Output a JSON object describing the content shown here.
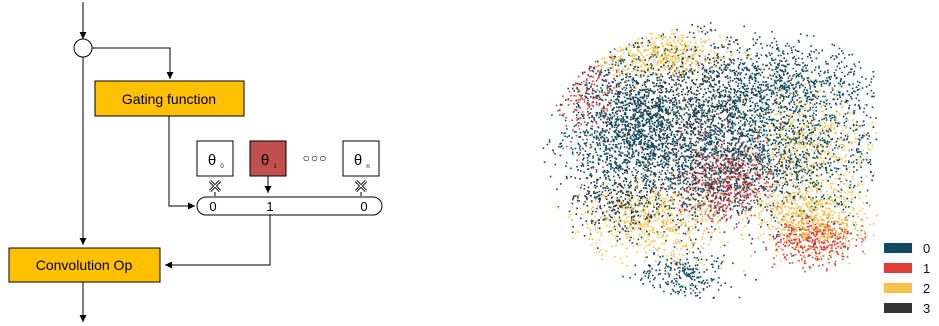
{
  "diagram": {
    "gating_label": "Gating function",
    "conv_label": "Convolution Op",
    "theta_base": "θ",
    "params": [
      {
        "sub": "0",
        "fill": "#ffffff",
        "gate": "0",
        "selected": false
      },
      {
        "sub": "1",
        "fill": "#c0504d",
        "gate": "1",
        "selected": true
      },
      {
        "sub": "n",
        "fill": "#ffffff",
        "gate": "0",
        "selected": false
      }
    ],
    "ellipsis": "○○○",
    "gating_fill": "#ffc000"
  },
  "chart_data": {
    "type": "scatter",
    "legend": [
      {
        "label": "0",
        "color": "#0f4a5e"
      },
      {
        "label": "1",
        "color": "#e03c36"
      },
      {
        "label": "2",
        "color": "#f8c24a"
      },
      {
        "label": "3",
        "color": "#333333"
      }
    ],
    "legend_placement": "bottom-right",
    "grid": false,
    "axes": false
  }
}
